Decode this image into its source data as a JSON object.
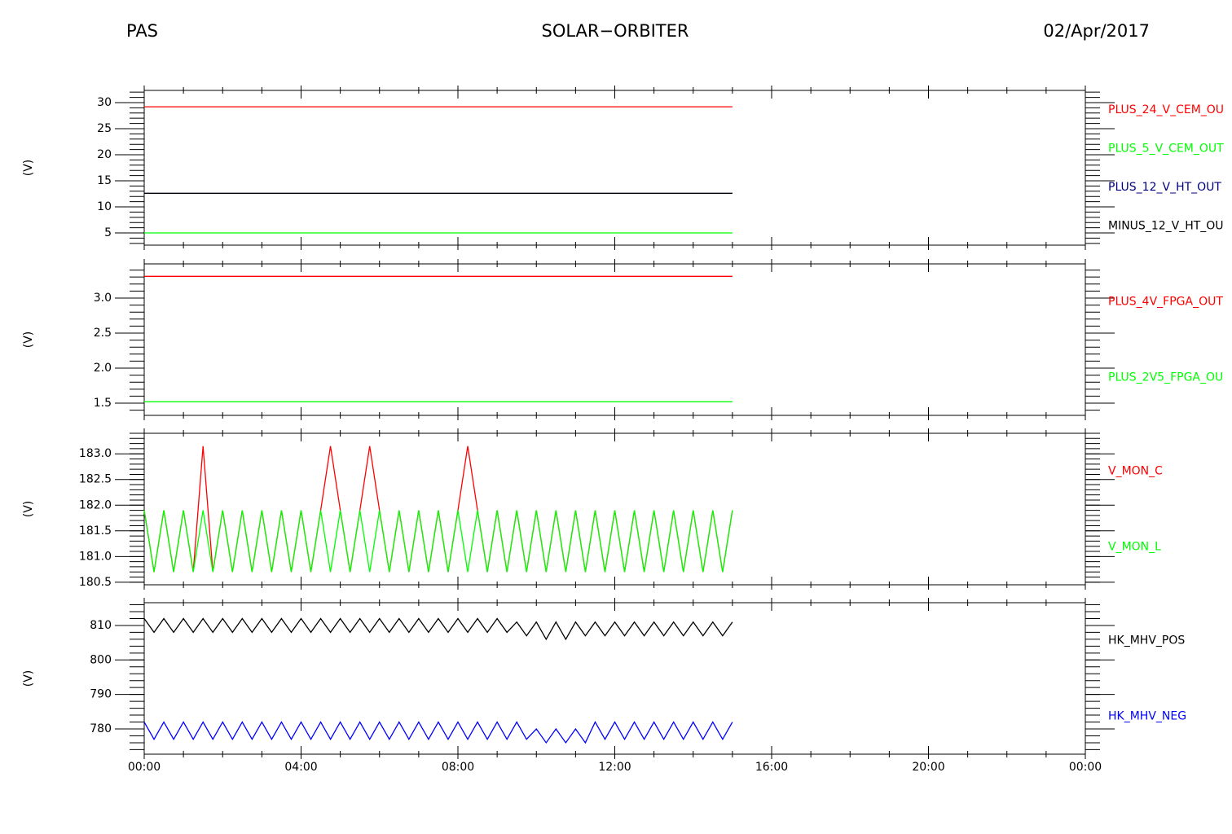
{
  "header": {
    "left": "PAS",
    "center": "SOLAR−ORBITER",
    "right": "02/Apr/2017"
  },
  "chart_data": [
    {
      "type": "line",
      "y_label": "(V)",
      "x": [
        0,
        0.25,
        0.5,
        0.75,
        1,
        1.25,
        1.5,
        1.75,
        2,
        2.25,
        2.5,
        2.75,
        3,
        3.25,
        3.5,
        3.75,
        4,
        4.25,
        4.5,
        4.75,
        5,
        5.25,
        5.5,
        5.75,
        6,
        6.25,
        6.5,
        6.75,
        7,
        7.25,
        7.5,
        7.75,
        8,
        8.25,
        8.5,
        8.75,
        9,
        9.25,
        9.5,
        9.75,
        10,
        10.25,
        10.5,
        10.75,
        11,
        11.25,
        11.5,
        11.75,
        12,
        12.25,
        12.5,
        12.75,
        13,
        13.25,
        13.5,
        13.75,
        14,
        14.25,
        14.5,
        14.75,
        15
      ],
      "xlim": [
        0,
        24
      ],
      "xticks": [
        0,
        4,
        8,
        12,
        16,
        20,
        24
      ],
      "ylim": [
        2.66,
        32.34
      ],
      "yticks": [
        5,
        10,
        15,
        20,
        25,
        30
      ],
      "series": [
        {
          "name": "PLUS_24_V_CEM_OU",
          "color": "#ff0000",
          "values": [
            29.2,
            29.2,
            29.2,
            29.2,
            29.2,
            29.2,
            29.2,
            29.2,
            29.2,
            29.2,
            29.2,
            29.2,
            29.2,
            29.2,
            29.2,
            29.2,
            29.2,
            29.2,
            29.2,
            29.2,
            29.2,
            29.2,
            29.2,
            29.2,
            29.2,
            29.2,
            29.2,
            29.2,
            29.2,
            29.2,
            29.2,
            29.2,
            29.2,
            29.2,
            29.2,
            29.2,
            29.2,
            29.2,
            29.2,
            29.2,
            29.2,
            29.2,
            29.2,
            29.2,
            29.2,
            29.2,
            29.2,
            29.2,
            29.2,
            29.2,
            29.2,
            29.2,
            29.2,
            29.2,
            29.2,
            29.2,
            29.2,
            29.2,
            29.2,
            29.2,
            29.2
          ]
        },
        {
          "name": "PLUS_5_V_CEM_OUT",
          "color": "#00ff00",
          "values": [
            5,
            5,
            5,
            5,
            5,
            5,
            5,
            5,
            5,
            5,
            5,
            5,
            5,
            5,
            5,
            5,
            5,
            5,
            5,
            5,
            5,
            5,
            5,
            5,
            5,
            5,
            5,
            5,
            5,
            5,
            5,
            5,
            5,
            5,
            5,
            5,
            5,
            5,
            5,
            5,
            5,
            5,
            5,
            5,
            5,
            5,
            5,
            5,
            5,
            5,
            5,
            5,
            5,
            5,
            5,
            5,
            5,
            5,
            5,
            5,
            5
          ]
        },
        {
          "name": "PLUS_12_V_HT_OUT",
          "color": "#000080",
          "values": [
            12.6,
            12.6,
            12.6,
            12.6,
            12.6,
            12.6,
            12.6,
            12.6,
            12.6,
            12.6,
            12.6,
            12.6,
            12.6,
            12.6,
            12.6,
            12.6,
            12.6,
            12.6,
            12.6,
            12.6,
            12.6,
            12.6,
            12.6,
            12.6,
            12.6,
            12.6,
            12.6,
            12.6,
            12.6,
            12.6,
            12.6,
            12.6,
            12.6,
            12.6,
            12.6,
            12.6,
            12.6,
            12.6,
            12.6,
            12.6,
            12.6,
            12.6,
            12.6,
            12.6,
            12.6,
            12.6,
            12.6,
            12.6,
            12.6,
            12.6,
            12.6,
            12.6,
            12.6,
            12.6,
            12.6,
            12.6,
            12.6,
            12.6,
            12.6,
            12.6,
            12.6
          ]
        },
        {
          "name": "MINUS_12_V_HT_OU",
          "color": "#000000",
          "values": [
            12.6,
            12.6,
            12.6,
            12.6,
            12.6,
            12.6,
            12.6,
            12.6,
            12.6,
            12.6,
            12.6,
            12.6,
            12.6,
            12.6,
            12.6,
            12.6,
            12.6,
            12.6,
            12.6,
            12.6,
            12.6,
            12.6,
            12.6,
            12.6,
            12.6,
            12.6,
            12.6,
            12.6,
            12.6,
            12.6,
            12.6,
            12.6,
            12.6,
            12.6,
            12.6,
            12.6,
            12.6,
            12.6,
            12.6,
            12.6,
            12.6,
            12.6,
            12.6,
            12.6,
            12.6,
            12.6,
            12.6,
            12.6,
            12.6,
            12.6,
            12.6,
            12.6,
            12.6,
            12.6,
            12.6,
            12.6,
            12.6,
            12.6,
            12.6,
            12.6,
            12.6
          ]
        }
      ]
    },
    {
      "type": "line",
      "y_label": "(V)",
      "x": [
        0,
        0.25,
        0.5,
        0.75,
        1,
        1.25,
        1.5,
        1.75,
        2,
        2.25,
        2.5,
        2.75,
        3,
        3.25,
        3.5,
        3.75,
        4,
        4.25,
        4.5,
        4.75,
        5,
        5.25,
        5.5,
        5.75,
        6,
        6.25,
        6.5,
        6.75,
        7,
        7.25,
        7.5,
        7.75,
        8,
        8.25,
        8.5,
        8.75,
        9,
        9.25,
        9.5,
        9.75,
        10,
        10.25,
        10.5,
        10.75,
        11,
        11.25,
        11.5,
        11.75,
        12,
        12.25,
        12.5,
        12.75,
        13,
        13.25,
        13.5,
        13.75,
        14,
        14.25,
        14.5,
        14.75,
        15
      ],
      "xlim": [
        0,
        24
      ],
      "xticks": [
        0,
        4,
        8,
        12,
        16,
        20,
        24
      ],
      "ylim": [
        1.326,
        3.488
      ],
      "yticks": [
        1.5,
        {
          "value": 2,
          "label": "2.0"
        },
        2.5,
        {
          "value": 3,
          "label": "3.0"
        }
      ],
      "series": [
        {
          "name": "PLUS_4V_FPGA_OUT",
          "color": "#ff0000",
          "values": [
            3.31,
            3.31,
            3.31,
            3.31,
            3.31,
            3.31,
            3.31,
            3.31,
            3.31,
            3.31,
            3.31,
            3.31,
            3.31,
            3.31,
            3.31,
            3.31,
            3.31,
            3.31,
            3.31,
            3.31,
            3.31,
            3.31,
            3.31,
            3.31,
            3.31,
            3.31,
            3.31,
            3.31,
            3.31,
            3.31,
            3.31,
            3.31,
            3.31,
            3.31,
            3.31,
            3.31,
            3.31,
            3.31,
            3.31,
            3.31,
            3.31,
            3.31,
            3.31,
            3.31,
            3.31,
            3.31,
            3.31,
            3.31,
            3.31,
            3.31,
            3.31,
            3.31,
            3.31,
            3.31,
            3.31,
            3.31,
            3.31,
            3.31,
            3.31,
            3.31,
            3.31
          ]
        },
        {
          "name": "PLUS_2V5_FPGA_OU",
          "color": "#00ff00",
          "values": [
            1.52,
            1.52,
            1.52,
            1.52,
            1.52,
            1.52,
            1.52,
            1.52,
            1.52,
            1.52,
            1.52,
            1.52,
            1.52,
            1.52,
            1.52,
            1.52,
            1.52,
            1.52,
            1.52,
            1.52,
            1.52,
            1.52,
            1.52,
            1.52,
            1.52,
            1.52,
            1.52,
            1.52,
            1.52,
            1.52,
            1.52,
            1.52,
            1.52,
            1.52,
            1.52,
            1.52,
            1.52,
            1.52,
            1.52,
            1.52,
            1.52,
            1.52,
            1.52,
            1.52,
            1.52,
            1.52,
            1.52,
            1.52,
            1.52,
            1.52,
            1.52,
            1.52,
            1.52,
            1.52,
            1.52,
            1.52,
            1.52,
            1.52,
            1.52,
            1.52,
            1.52
          ]
        }
      ]
    },
    {
      "type": "line",
      "y_label": "(V)",
      "x": [
        0,
        0.25,
        0.5,
        0.75,
        1,
        1.25,
        1.5,
        1.75,
        2,
        2.25,
        2.5,
        2.75,
        3,
        3.25,
        3.5,
        3.75,
        4,
        4.25,
        4.5,
        4.75,
        5,
        5.25,
        5.5,
        5.75,
        6,
        6.25,
        6.5,
        6.75,
        7,
        7.25,
        7.5,
        7.75,
        8,
        8.25,
        8.5,
        8.75,
        9,
        9.25,
        9.5,
        9.75,
        10,
        10.25,
        10.5,
        10.75,
        11,
        11.25,
        11.5,
        11.75,
        12,
        12.25,
        12.5,
        12.75,
        13,
        13.25,
        13.5,
        13.75,
        14,
        14.25,
        14.5,
        14.75,
        15
      ],
      "xlim": [
        0,
        24
      ],
      "xticks": [
        0,
        4,
        8,
        12,
        16,
        20,
        24
      ],
      "ylim": [
        180.45,
        183.4
      ],
      "yticks": [
        180.5,
        {
          "value": 181,
          "label": "181.0"
        },
        181.5,
        {
          "value": 182,
          "label": "182.0"
        },
        182.5,
        {
          "value": 183,
          "label": "183.0"
        }
      ],
      "series": [
        {
          "name": "V_MON_C",
          "color": "#ff0000",
          "values": [
            181.9,
            180.7,
            181.9,
            180.7,
            181.9,
            180.7,
            183.15,
            180.7,
            181.9,
            180.7,
            181.9,
            180.7,
            181.9,
            180.7,
            181.9,
            180.7,
            181.9,
            180.7,
            181.9,
            183.15,
            181.9,
            180.7,
            181.9,
            183.15,
            181.9,
            180.7,
            181.9,
            180.7,
            181.9,
            180.7,
            181.9,
            180.7,
            181.9,
            183.15,
            181.9,
            180.7,
            181.9,
            180.7,
            181.9,
            180.7,
            181.9,
            180.7,
            181.9,
            180.7,
            181.9,
            180.7,
            181.9,
            180.7,
            181.9,
            180.7,
            181.9,
            180.7,
            181.9,
            180.7,
            181.9,
            180.7,
            181.9,
            180.7,
            181.9,
            180.7,
            181.9
          ]
        },
        {
          "name": "V_MON_L",
          "color": "#00ff00",
          "values": [
            181.9,
            180.7,
            181.9,
            180.7,
            181.9,
            180.7,
            181.9,
            180.7,
            181.9,
            180.7,
            181.9,
            180.7,
            181.9,
            180.7,
            181.9,
            180.7,
            181.9,
            180.7,
            181.9,
            180.7,
            181.9,
            180.7,
            181.9,
            180.7,
            181.9,
            180.7,
            181.9,
            180.7,
            181.9,
            180.7,
            181.9,
            180.7,
            181.9,
            180.7,
            181.9,
            180.7,
            181.9,
            180.7,
            181.9,
            180.7,
            181.9,
            180.7,
            181.9,
            180.7,
            181.9,
            180.7,
            181.9,
            180.7,
            181.9,
            180.7,
            181.9,
            180.7,
            181.9,
            180.7,
            181.9,
            180.7,
            181.9,
            180.7,
            181.9,
            180.7,
            181.9
          ]
        }
      ]
    },
    {
      "type": "line",
      "y_label": "(V)",
      "x": [
        0,
        0.25,
        0.5,
        0.75,
        1,
        1.25,
        1.5,
        1.75,
        2,
        2.25,
        2.5,
        2.75,
        3,
        3.25,
        3.5,
        3.75,
        4,
        4.25,
        4.5,
        4.75,
        5,
        5.25,
        5.5,
        5.75,
        6,
        6.25,
        6.5,
        6.75,
        7,
        7.25,
        7.5,
        7.75,
        8,
        8.25,
        8.5,
        8.75,
        9,
        9.25,
        9.5,
        9.75,
        10,
        10.25,
        10.5,
        10.75,
        11,
        11.25,
        11.5,
        11.75,
        12,
        12.25,
        12.5,
        12.75,
        13,
        13.25,
        13.5,
        13.75,
        14,
        14.25,
        14.5,
        14.75,
        15
      ],
      "xlim": [
        0,
        24
      ],
      "xticks": [
        {
          "value": 0,
          "label": "00:00"
        },
        {
          "value": 4,
          "label": "04:00"
        },
        {
          "value": 8,
          "label": "08:00"
        },
        {
          "value": 12,
          "label": "12:00"
        },
        {
          "value": 16,
          "label": "16:00"
        },
        {
          "value": 20,
          "label": "20:00"
        },
        {
          "value": 24,
          "label": "00:00"
        }
      ],
      "ylim": [
        772.68,
        816.6
      ],
      "yticks": [
        780,
        790,
        800,
        810
      ],
      "series": [
        {
          "name": "HK_MHV_POS",
          "color": "#000000",
          "values": [
            812,
            808,
            812,
            808,
            812,
            808,
            812,
            808,
            812,
            808,
            812,
            808,
            812,
            808,
            812,
            808,
            812,
            808,
            812,
            808,
            812,
            808,
            812,
            808,
            812,
            808,
            812,
            808,
            812,
            808,
            812,
            808,
            812,
            808,
            812,
            808,
            812,
            808,
            811,
            807,
            811,
            806,
            811,
            806,
            811,
            807,
            811,
            807,
            811,
            807,
            811,
            807,
            811,
            807,
            811,
            807,
            811,
            807,
            811,
            807,
            811
          ]
        },
        {
          "name": "HK_MHV_NEG",
          "color": "#0000ff",
          "values": [
            782,
            777,
            782,
            777,
            782,
            777,
            782,
            777,
            782,
            777,
            782,
            777,
            782,
            777,
            782,
            777,
            782,
            777,
            782,
            777,
            782,
            777,
            782,
            777,
            782,
            777,
            782,
            777,
            782,
            777,
            782,
            777,
            782,
            777,
            782,
            777,
            782,
            777,
            782,
            777,
            780,
            776,
            780,
            776,
            780,
            776,
            782,
            777,
            782,
            777,
            782,
            777,
            782,
            777,
            782,
            777,
            782,
            777,
            782,
            777,
            782
          ]
        }
      ]
    }
  ]
}
